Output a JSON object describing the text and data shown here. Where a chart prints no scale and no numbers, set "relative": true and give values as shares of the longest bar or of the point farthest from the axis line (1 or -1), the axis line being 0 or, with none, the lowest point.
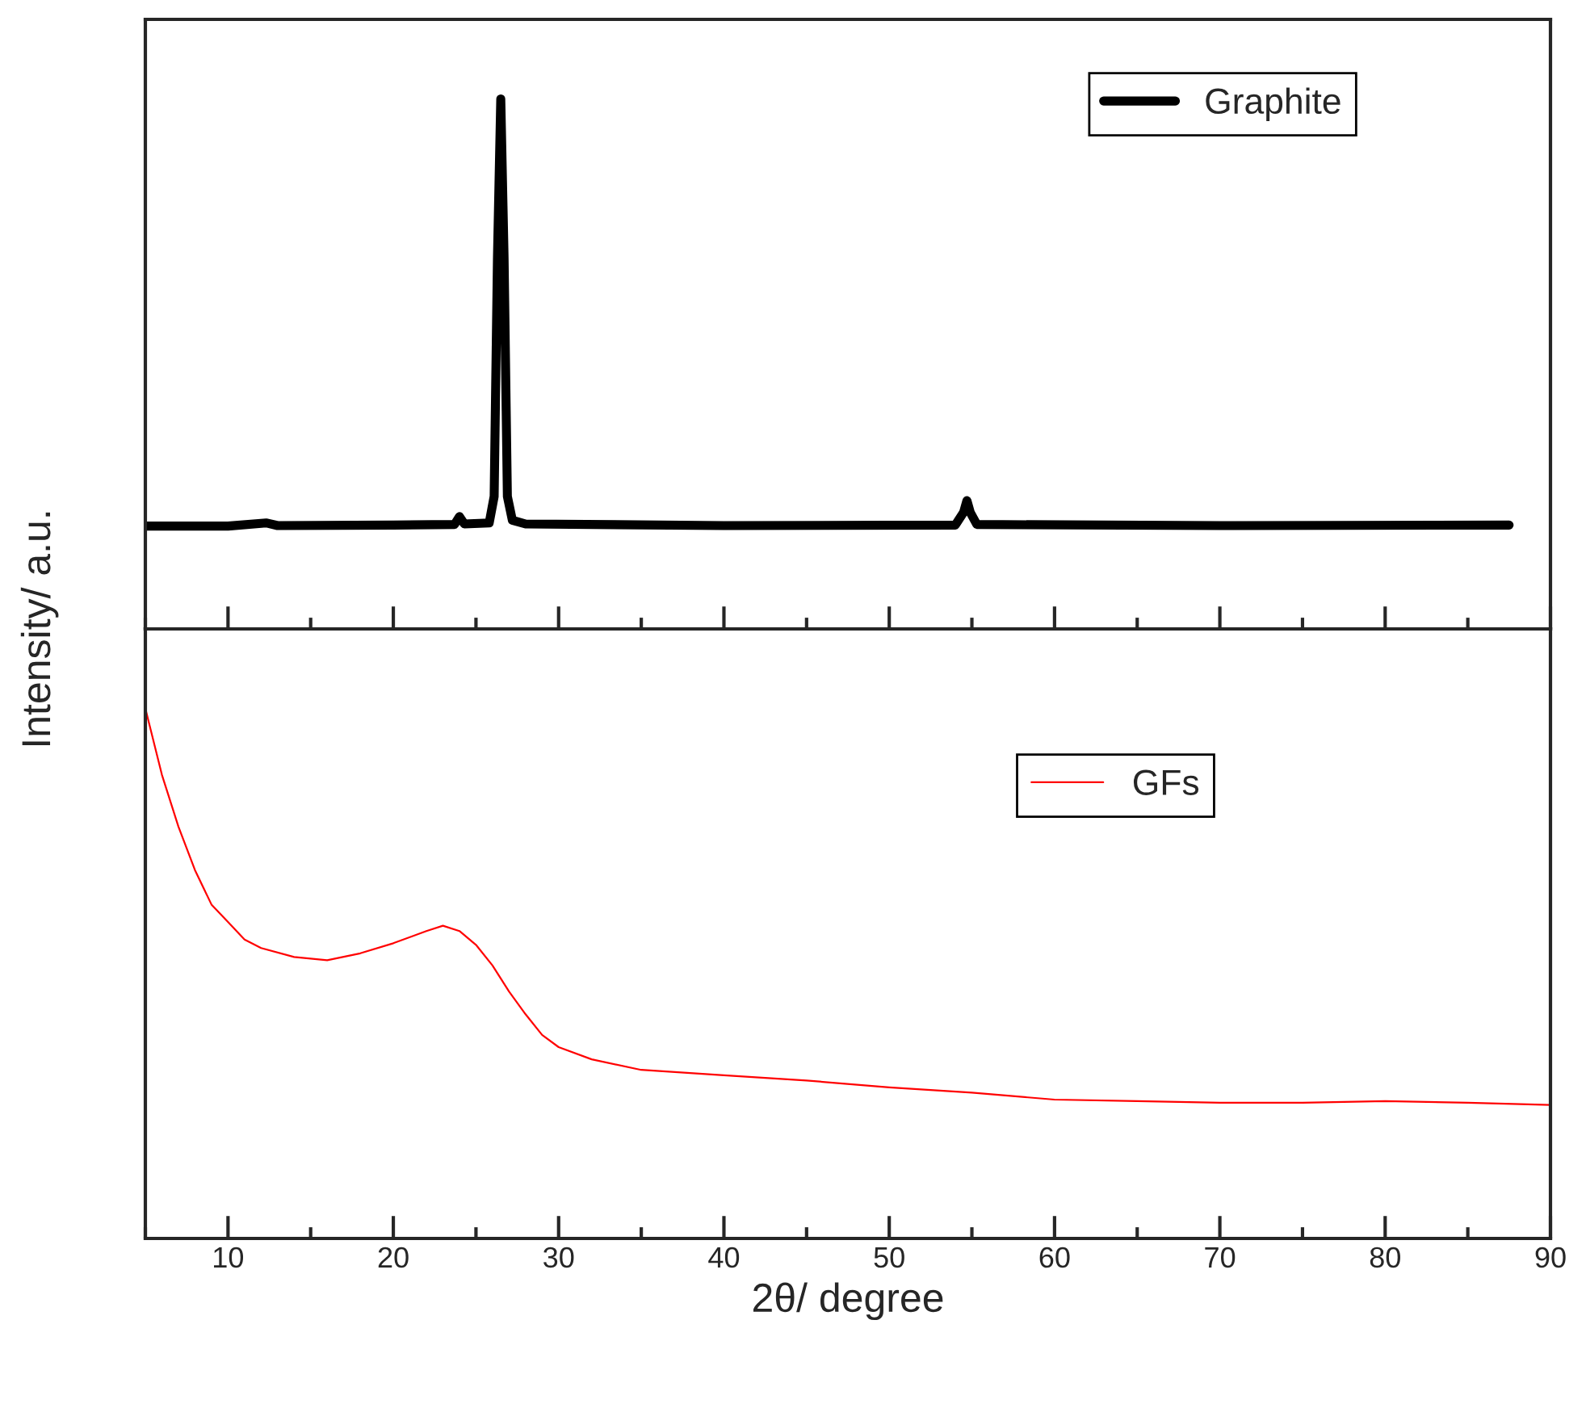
{
  "chart_data": [
    {
      "type": "line",
      "ylabel": "Intensity/ a.u.",
      "relative": true,
      "xlim": [
        5,
        90
      ],
      "xticks": [
        10,
        20,
        30,
        40,
        50,
        60,
        70,
        80,
        90
      ],
      "tick_labels": false,
      "legend": "top right",
      "grid": false,
      "x": [
        5,
        10,
        12.3,
        13,
        20,
        23.7,
        24,
        24.3,
        25.8,
        26.1,
        26.3,
        26.5,
        26.7,
        26.9,
        27.2,
        28,
        40,
        54,
        54.5,
        54.7,
        54.9,
        55.3,
        70,
        87.5
      ],
      "series": [
        {
          "name": "Graphite",
          "color": "#000000",
          "values": [
            0.194,
            0.194,
            0.2,
            0.195,
            0.196,
            0.197,
            0.212,
            0.198,
            0.2,
            0.25,
            0.7,
            1.0,
            0.7,
            0.25,
            0.205,
            0.198,
            0.195,
            0.196,
            0.22,
            0.242,
            0.22,
            0.197,
            0.195,
            0.196
          ]
        }
      ]
    },
    {
      "type": "line",
      "xlabel": "2θ/ degree",
      "relative": true,
      "xlim": [
        5,
        90
      ],
      "xticks": [
        10,
        20,
        30,
        40,
        50,
        60,
        70,
        80,
        90
      ],
      "tick_labels": "x",
      "legend": "top right",
      "grid": false,
      "x": [
        5,
        6,
        7,
        8,
        9,
        10,
        11,
        12,
        14,
        16,
        18,
        20,
        22,
        23,
        24,
        25,
        26,
        27,
        28,
        29,
        30,
        32,
        35,
        40,
        45,
        50,
        55,
        60,
        65,
        70,
        75,
        80,
        85,
        90
      ],
      "series": [
        {
          "name": "GFs",
          "color": "#ff0000",
          "values": [
            1.0,
            0.875,
            0.777,
            0.695,
            0.63,
            0.597,
            0.564,
            0.548,
            0.531,
            0.525,
            0.538,
            0.557,
            0.58,
            0.59,
            0.58,
            0.554,
            0.515,
            0.466,
            0.423,
            0.384,
            0.361,
            0.338,
            0.318,
            0.308,
            0.298,
            0.285,
            0.275,
            0.262,
            0.259,
            0.256,
            0.256,
            0.259,
            0.256,
            0.252
          ]
        }
      ]
    }
  ]
}
